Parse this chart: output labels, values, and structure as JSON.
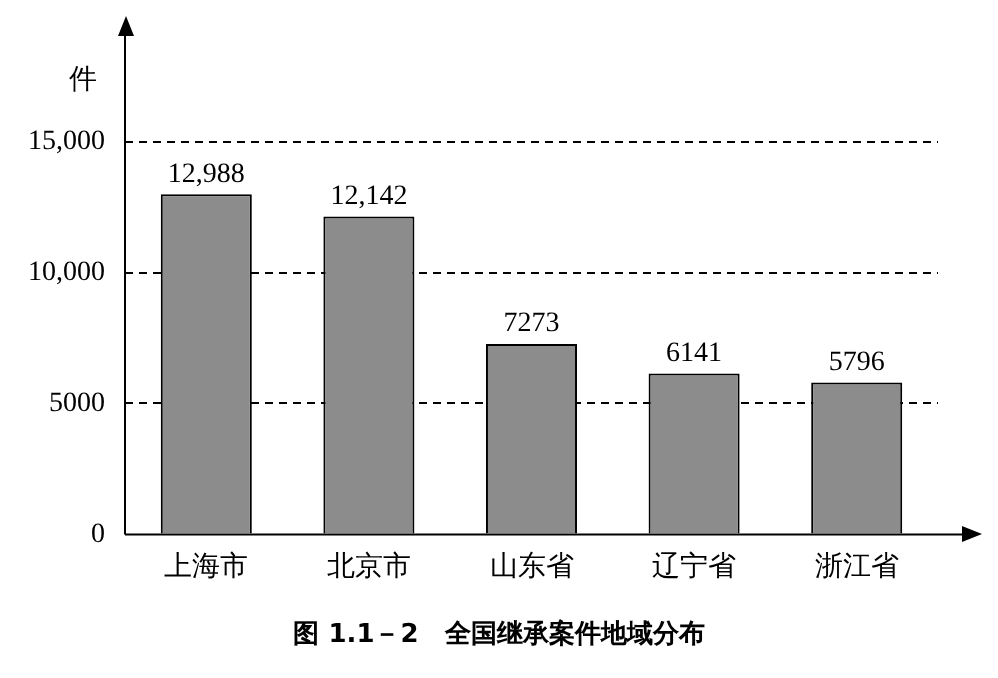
{
  "chart_data": {
    "type": "bar",
    "title": "图 1.1－2　全国继承案件地域分布",
    "ylabel": "件",
    "categories": [
      "上海市",
      "北京市",
      "山东省",
      "辽宁省",
      "浙江省"
    ],
    "values": [
      12988,
      12142,
      7273,
      6141,
      5796
    ],
    "value_labels": [
      "12,988",
      "12,142",
      "7273",
      "6141",
      "5796"
    ],
    "color": "#8c8c8c",
    "ylim": [
      0,
      19000
    ],
    "yticks": [
      0,
      5000,
      {
        "value": 10000,
        "label": "10,000"
      },
      {
        "value": 15000,
        "label": "15,000"
      }
    ],
    "grid": "y",
    "legend": false
  }
}
